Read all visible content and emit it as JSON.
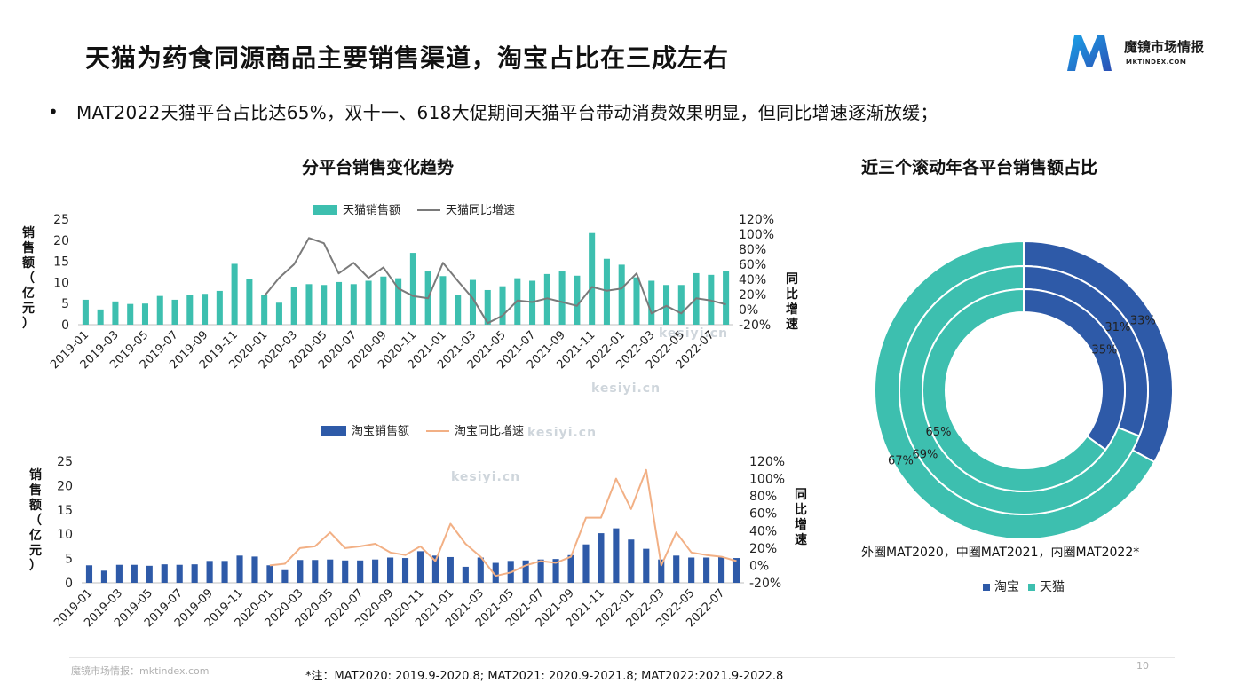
{
  "title": "天猫为药食同源商品主要销售渠道，淘宝占比在三成左右",
  "logo": {
    "name": "魔镜市场情报",
    "url": "MKTINDEX.COM"
  },
  "bullet": "MAT2022天猫平台占比达65%，双十一、618大促期间天猫平台带动消费效果明显，但同比增速逐渐放缓；",
  "left_section_title": "分平台销售变化趋势",
  "right_section_title": "近三个滚动年各平台销售额占比",
  "donut_caption": "外圈MAT2020，中圈MAT2021，内圈MAT2022*",
  "footer": {
    "source": "魔镜市场情报：mktindex.com",
    "note": "*注：MAT2020: 2019.9-2020.8; MAT2021: 2020.9-2021.8; MAT2022:2021.9-2022.8",
    "page": "10"
  },
  "watermark": "kesiyi.cn",
  "colors": {
    "tmall": "#3dbfaf",
    "taobao": "#2e5aa8",
    "tmall_line": "#7a7a7a",
    "taobao_line": "#f2b085"
  },
  "chart_data": [
    {
      "type": "bar",
      "legend": [
        "天猫销售额",
        "天猫同比增速"
      ],
      "ylabel": "销售额（亿元）",
      "y2label": "同比增速",
      "ylim": [
        0,
        25
      ],
      "yticks": [
        "0",
        "5",
        "10",
        "15",
        "20",
        "25"
      ],
      "y2lim": [
        -20,
        120
      ],
      "y2ticks": [
        "-20%",
        "0%",
        "20%",
        "40%",
        "60%",
        "80%",
        "100%",
        "120%"
      ],
      "xtick_labels": [
        "2019-01",
        "2019-03",
        "2019-05",
        "2019-07",
        "2019-09",
        "2019-11",
        "2020-01",
        "2020-03",
        "2020-05",
        "2020-07",
        "2020-09",
        "2020-11",
        "2021-01",
        "2021-03",
        "2021-05",
        "2021-07",
        "2021-09",
        "2021-11",
        "2022-01",
        "2022-03",
        "2022-05",
        "2022-07"
      ],
      "categories": [
        "2019-01",
        "2019-02",
        "2019-03",
        "2019-04",
        "2019-05",
        "2019-06",
        "2019-07",
        "2019-08",
        "2019-09",
        "2019-10",
        "2019-11",
        "2019-12",
        "2020-01",
        "2020-02",
        "2020-03",
        "2020-04",
        "2020-05",
        "2020-06",
        "2020-07",
        "2020-08",
        "2020-09",
        "2020-10",
        "2020-11",
        "2020-12",
        "2021-01",
        "2021-02",
        "2021-03",
        "2021-04",
        "2021-05",
        "2021-06",
        "2021-07",
        "2021-08",
        "2021-09",
        "2021-10",
        "2021-11",
        "2021-12",
        "2022-01",
        "2022-02",
        "2022-03",
        "2022-04",
        "2022-05",
        "2022-06",
        "2022-07",
        "2022-08"
      ],
      "series": [
        {
          "name": "天猫销售额",
          "kind": "bar",
          "values": [
            5.9,
            3.6,
            5.5,
            4.9,
            5.0,
            6.8,
            5.9,
            7.1,
            7.3,
            8.0,
            14.4,
            10.8,
            7.0,
            5.2,
            8.9,
            9.6,
            9.4,
            10.1,
            9.6,
            10.4,
            11.4,
            11.0,
            17.0,
            12.6,
            11.5,
            7.1,
            10.6,
            8.2,
            9.1,
            11.0,
            10.4,
            12.0,
            12.6,
            11.6,
            21.7,
            15.6,
            14.2,
            11.2,
            10.4,
            9.4,
            9.4,
            12.2,
            11.8,
            12.7
          ]
        },
        {
          "name": "天猫同比增速",
          "kind": "line",
          "axis": "right",
          "values": [
            null,
            null,
            null,
            null,
            null,
            null,
            null,
            null,
            null,
            null,
            null,
            null,
            18,
            42,
            60,
            95,
            88,
            48,
            62,
            42,
            56,
            28,
            18,
            15,
            62,
            38,
            15,
            -18,
            -8,
            12,
            10,
            15,
            10,
            5,
            30,
            25,
            28,
            48,
            -5,
            5,
            -5,
            15,
            12,
            7
          ]
        }
      ]
    },
    {
      "type": "bar",
      "legend": [
        "淘宝销售额",
        "淘宝同比增速"
      ],
      "ylabel": "销售额（亿元）",
      "y2label": "同比增速",
      "ylim": [
        0,
        25
      ],
      "yticks": [
        "0",
        "5",
        "10",
        "15",
        "20",
        "25"
      ],
      "y2lim": [
        -20,
        120
      ],
      "y2ticks": [
        "-20%",
        "0%",
        "20%",
        "40%",
        "60%",
        "80%",
        "100%",
        "120%"
      ],
      "xtick_labels": [
        "2019-01",
        "2019-03",
        "2019-05",
        "2019-07",
        "2019-09",
        "2019-11",
        "2020-01",
        "2020-03",
        "2020-05",
        "2020-07",
        "2020-09",
        "2020-11",
        "2021-01",
        "2021-03",
        "2021-05",
        "2021-07",
        "2021-09",
        "2021-11",
        "2022-01",
        "2022-03",
        "2022-05",
        "2022-07"
      ],
      "categories": [
        "2019-01",
        "2019-02",
        "2019-03",
        "2019-04",
        "2019-05",
        "2019-06",
        "2019-07",
        "2019-08",
        "2019-09",
        "2019-10",
        "2019-11",
        "2019-12",
        "2020-01",
        "2020-02",
        "2020-03",
        "2020-04",
        "2020-05",
        "2020-06",
        "2020-07",
        "2020-08",
        "2020-09",
        "2020-10",
        "2020-11",
        "2020-12",
        "2021-01",
        "2021-02",
        "2021-03",
        "2021-04",
        "2021-05",
        "2021-06",
        "2021-07",
        "2021-08",
        "2021-09",
        "2021-10",
        "2021-11",
        "2021-12",
        "2022-01",
        "2022-02",
        "2022-03",
        "2022-04",
        "2022-05",
        "2022-06",
        "2022-07",
        "2022-08"
      ],
      "series": [
        {
          "name": "淘宝销售额",
          "kind": "bar",
          "values": [
            3.6,
            2.5,
            3.7,
            3.7,
            3.5,
            3.8,
            3.7,
            3.8,
            4.5,
            4.5,
            5.6,
            5.4,
            3.6,
            2.6,
            4.7,
            4.7,
            4.8,
            4.6,
            4.6,
            4.8,
            5.2,
            5.1,
            6.5,
            5.6,
            5.3,
            3.3,
            5.2,
            4.1,
            4.5,
            4.6,
            4.8,
            4.9,
            5.7,
            7.9,
            10.2,
            11.2,
            8.9,
            7.0,
            4.8,
            5.6,
            5.2,
            5.2,
            5.3,
            5.1
          ]
        },
        {
          "name": "淘宝同比增速",
          "kind": "line",
          "axis": "right",
          "values": [
            null,
            null,
            null,
            null,
            null,
            null,
            null,
            null,
            null,
            null,
            null,
            null,
            0,
            2,
            20,
            22,
            38,
            20,
            22,
            25,
            15,
            12,
            22,
            5,
            48,
            25,
            10,
            -12,
            -8,
            0,
            5,
            3,
            10,
            55,
            55,
            100,
            65,
            110,
            0,
            38,
            15,
            12,
            10,
            5
          ]
        }
      ]
    },
    {
      "type": "pie",
      "subtype": "nested-donut",
      "legend": [
        "淘宝",
        "天猫"
      ],
      "rings": [
        {
          "name": "外圈MAT2020",
          "values": [
            33,
            67
          ],
          "labels": [
            "33%",
            "67%"
          ]
        },
        {
          "name": "中圈MAT2021",
          "values": [
            31,
            69
          ],
          "labels": [
            "31%",
            "69%"
          ]
        },
        {
          "name": "内圈MAT2022",
          "values": [
            35,
            65
          ],
          "labels": [
            "35%",
            "65%"
          ]
        }
      ]
    }
  ]
}
